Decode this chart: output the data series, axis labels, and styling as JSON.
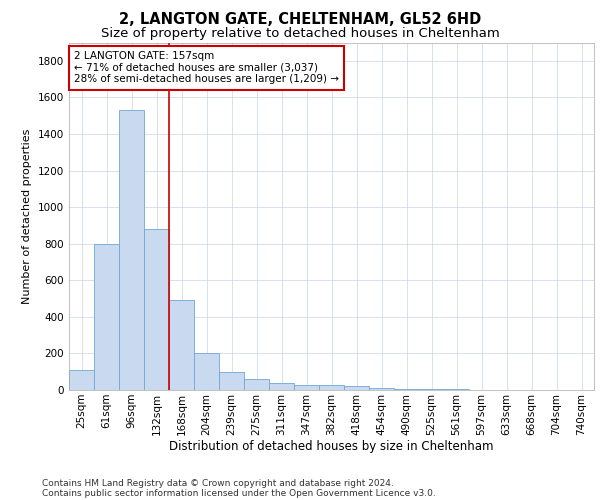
{
  "title1": "2, LANGTON GATE, CHELTENHAM, GL52 6HD",
  "title2": "Size of property relative to detached houses in Cheltenham",
  "xlabel": "Distribution of detached houses by size in Cheltenham",
  "ylabel": "Number of detached properties",
  "categories": [
    "25sqm",
    "61sqm",
    "96sqm",
    "132sqm",
    "168sqm",
    "204sqm",
    "239sqm",
    "275sqm",
    "311sqm",
    "347sqm",
    "382sqm",
    "418sqm",
    "454sqm",
    "490sqm",
    "525sqm",
    "561sqm",
    "597sqm",
    "633sqm",
    "668sqm",
    "704sqm",
    "740sqm"
  ],
  "values": [
    110,
    800,
    1530,
    880,
    490,
    205,
    100,
    60,
    37,
    28,
    26,
    20,
    12,
    5,
    4,
    3,
    2,
    1,
    1,
    0,
    0
  ],
  "bar_color": "#c9d9f0",
  "bar_edge_color": "#6fa8d6",
  "vline_x": 3.5,
  "vline_color": "#cc0000",
  "annotation_text": "2 LANGTON GATE: 157sqm\n← 71% of detached houses are smaller (3,037)\n28% of semi-detached houses are larger (1,209) →",
  "annotation_box_color": "white",
  "annotation_box_edge": "#cc0000",
  "ylim": [
    0,
    1900
  ],
  "yticks": [
    0,
    200,
    400,
    600,
    800,
    1000,
    1200,
    1400,
    1600,
    1800
  ],
  "grid_color": "#c8d4e8",
  "footnote1": "Contains HM Land Registry data © Crown copyright and database right 2024.",
  "footnote2": "Contains public sector information licensed under the Open Government Licence v3.0.",
  "title1_fontsize": 10.5,
  "title2_fontsize": 9.5,
  "xlabel_fontsize": 8.5,
  "ylabel_fontsize": 8,
  "tick_fontsize": 7.5,
  "annot_fontsize": 7.5,
  "footnote_fontsize": 6.5
}
